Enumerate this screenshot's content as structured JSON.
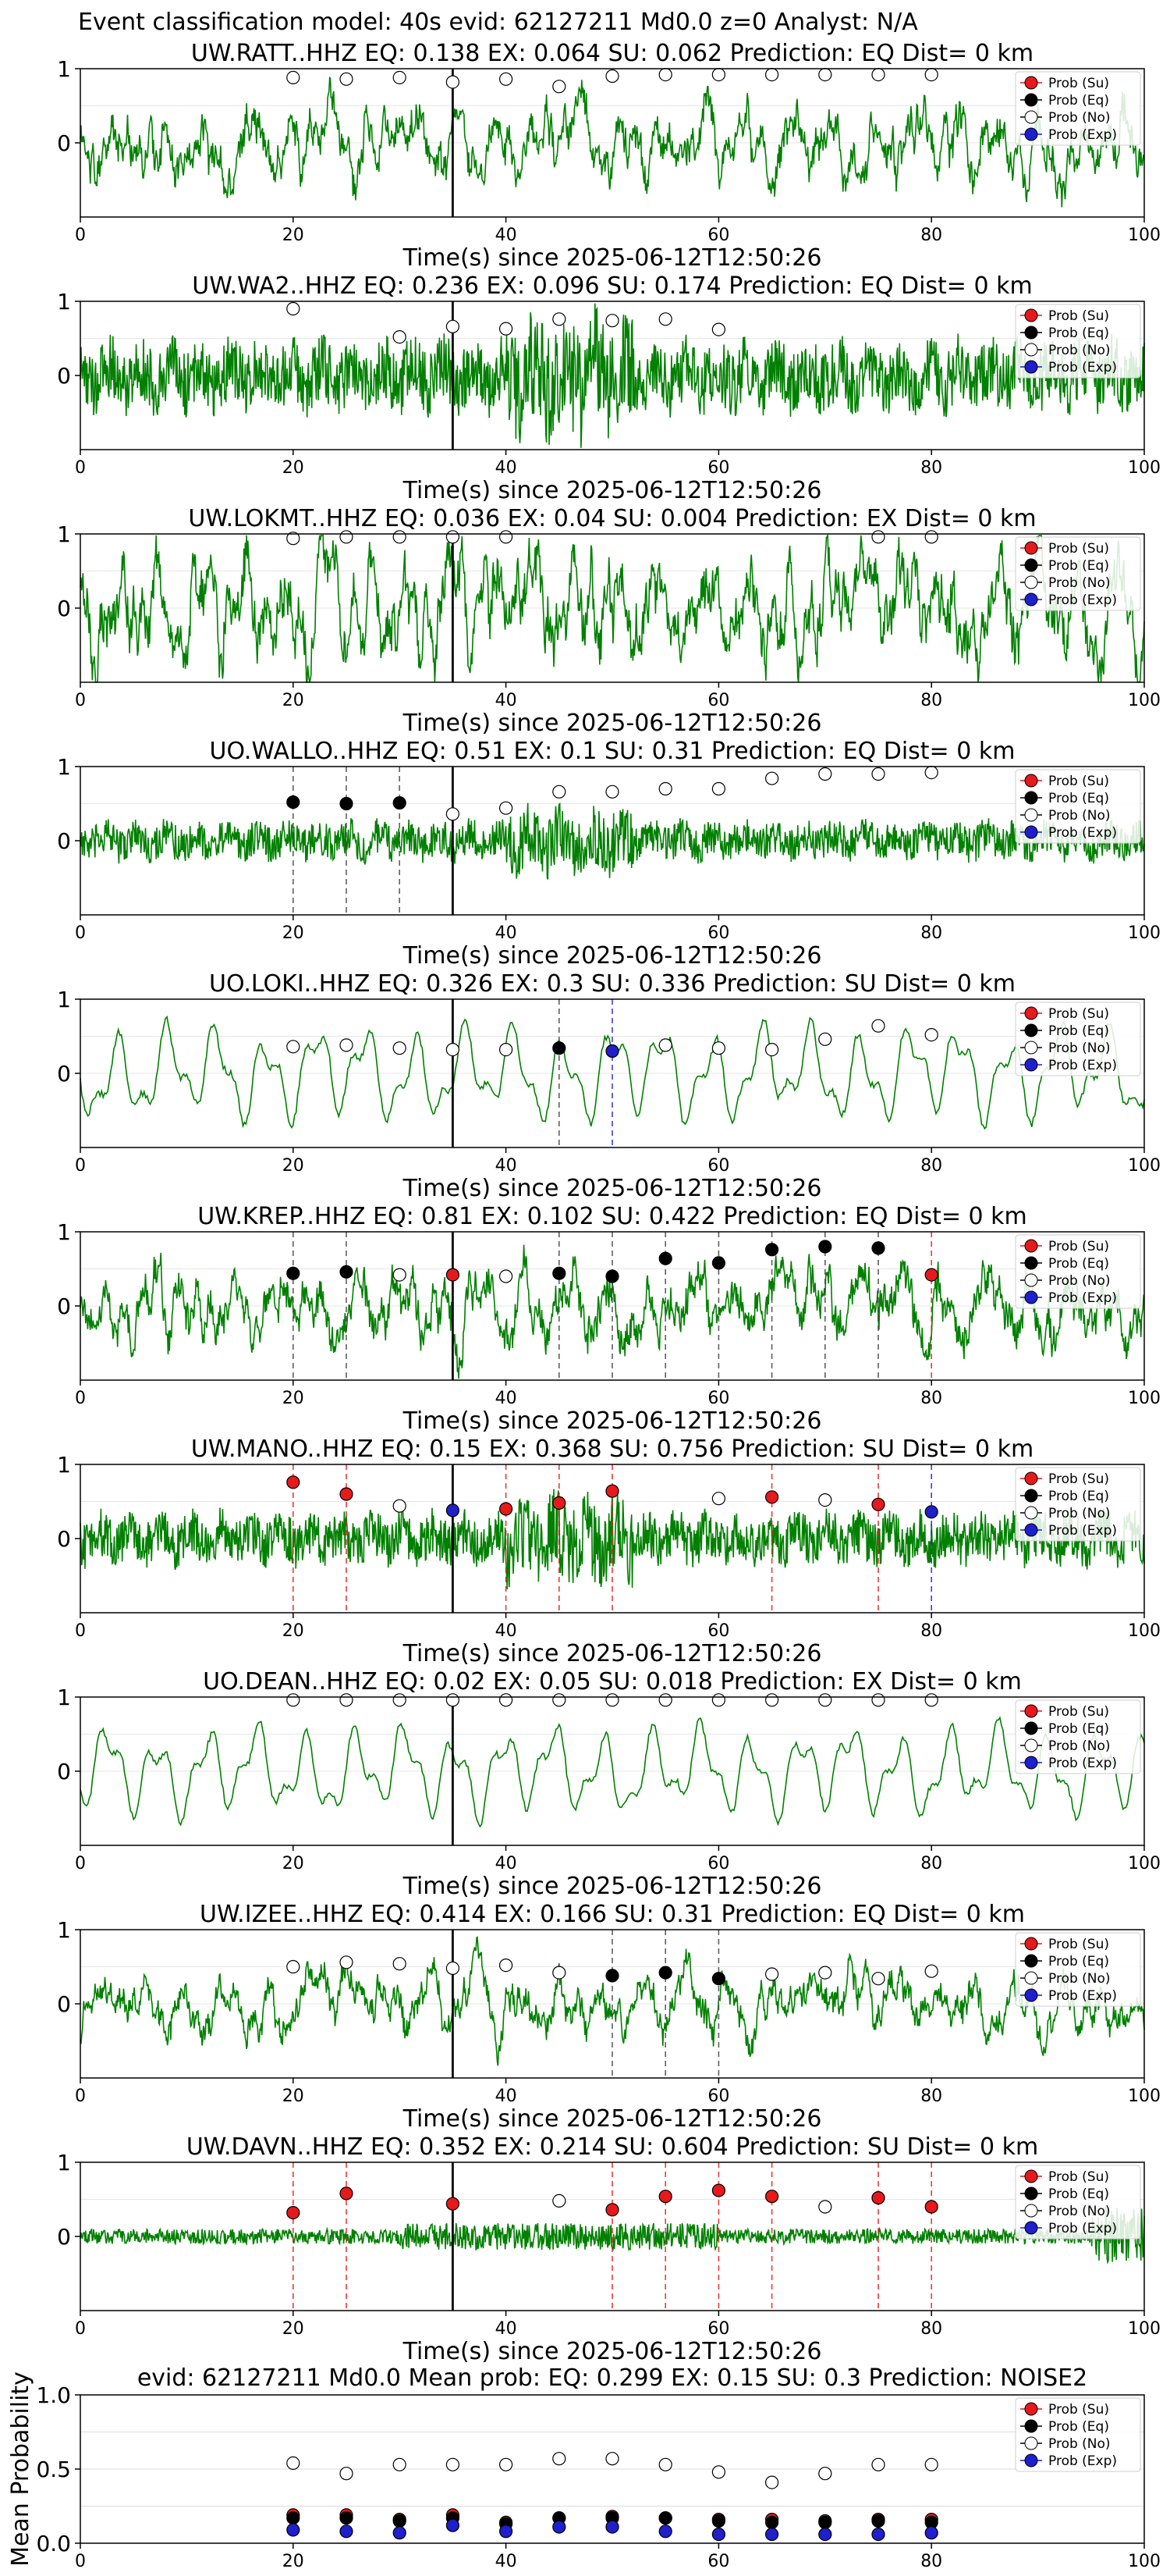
{
  "figure_title": "Event classification model: 40s evid: 62127211 Md0.0 z=0 Analyst: N/A",
  "legend_labels": [
    "Prob (Su)",
    "Prob (Eq)",
    "Prob (No)",
    "Prob (Exp)"
  ],
  "colors": {
    "su": "#e41a1c",
    "eq": "#000000",
    "no": "#ffffff",
    "exp": "#1f1fcc",
    "trace": "#008000",
    "pick_line": "#000000"
  },
  "chart_data": [
    {
      "type": "line",
      "station": "UW.RATT..HHZ",
      "title": "UW.RATT..HHZ   EQ: 0.138  EX: 0.064  SU: 0.062   Prediction: EQ    Dist= 0 km",
      "xlabel": "Time(s) since 2025-06-12T12:50:26",
      "xlim": [
        0,
        100
      ],
      "ylim": [
        -1,
        1
      ],
      "xticks": [
        "0",
        "20",
        "40",
        "60",
        "80",
        "100"
      ],
      "yticks": [
        "0",
        "1"
      ],
      "pick_time": 35,
      "trace_style": "broadband",
      "trace_amplitude": 0.55,
      "markers": [
        {
          "t": 20,
          "p": 0.88,
          "c": "no"
        },
        {
          "t": 25,
          "p": 0.86,
          "c": "no"
        },
        {
          "t": 30,
          "p": 0.88,
          "c": "no"
        },
        {
          "t": 35,
          "p": 0.82,
          "c": "no"
        },
        {
          "t": 40,
          "p": 0.86,
          "c": "no"
        },
        {
          "t": 45,
          "p": 0.76,
          "c": "no"
        },
        {
          "t": 50,
          "p": 0.9,
          "c": "no"
        },
        {
          "t": 55,
          "p": 0.92,
          "c": "no"
        },
        {
          "t": 60,
          "p": 0.92,
          "c": "no"
        },
        {
          "t": 65,
          "p": 0.92,
          "c": "no"
        },
        {
          "t": 70,
          "p": 0.92,
          "c": "no"
        },
        {
          "t": 75,
          "p": 0.92,
          "c": "no"
        },
        {
          "t": 80,
          "p": 0.92,
          "c": "no"
        }
      ]
    },
    {
      "type": "line",
      "station": "UW.WA2..HHZ",
      "title": "UW.WA2..HHZ   EQ: 0.236  EX: 0.096  SU: 0.174   Prediction: EQ    Dist= 0 km",
      "xlabel": "Time(s) since 2025-06-12T12:50:26",
      "xlim": [
        0,
        100
      ],
      "ylim": [
        -1,
        1
      ],
      "xticks": [
        "0",
        "20",
        "40",
        "60",
        "80",
        "100"
      ],
      "yticks": [
        "0",
        "1"
      ],
      "pick_time": 35,
      "trace_style": "noisy",
      "trace_amplitude": 0.55,
      "markers": [
        {
          "t": 20,
          "p": 0.9,
          "c": "no"
        },
        {
          "t": 30,
          "p": 0.52,
          "c": "no"
        },
        {
          "t": 35,
          "p": 0.66,
          "c": "no"
        },
        {
          "t": 40,
          "p": 0.63,
          "c": "no"
        },
        {
          "t": 45,
          "p": 0.76,
          "c": "no"
        },
        {
          "t": 50,
          "p": 0.74,
          "c": "no"
        },
        {
          "t": 55,
          "p": 0.76,
          "c": "no"
        },
        {
          "t": 60,
          "p": 0.62,
          "c": "no"
        }
      ]
    },
    {
      "type": "line",
      "station": "UW.LOKMT..HHZ",
      "title": "UW.LOKMT..HHZ   EQ: 0.036  EX: 0.04  SU: 0.004   Prediction: EX    Dist= 0 km",
      "xlabel": "Time(s) since 2025-06-12T12:50:26",
      "xlim": [
        0,
        100
      ],
      "ylim": [
        -1,
        1
      ],
      "xticks": [
        "0",
        "20",
        "40",
        "60",
        "80",
        "100"
      ],
      "yticks": [
        "0",
        "1"
      ],
      "pick_time": 35,
      "trace_style": "broadband",
      "trace_amplitude": 0.8,
      "markers": [
        {
          "t": 20,
          "p": 0.94,
          "c": "no"
        },
        {
          "t": 25,
          "p": 0.96,
          "c": "no"
        },
        {
          "t": 30,
          "p": 0.96,
          "c": "no"
        },
        {
          "t": 35,
          "p": 0.96,
          "c": "no"
        },
        {
          "t": 40,
          "p": 0.96,
          "c": "no"
        },
        {
          "t": 75,
          "p": 0.96,
          "c": "no"
        },
        {
          "t": 80,
          "p": 0.96,
          "c": "no"
        }
      ]
    },
    {
      "type": "line",
      "station": "UO.WALLO..HHZ",
      "title": "UO.WALLO..HHZ   EQ: 0.51  EX: 0.1  SU: 0.31   Prediction: EQ    Dist= 0 km",
      "xlabel": "Time(s) since 2025-06-12T12:50:26",
      "xlim": [
        0,
        100
      ],
      "ylim": [
        -1,
        1
      ],
      "xticks": [
        "0",
        "20",
        "40",
        "60",
        "80",
        "100"
      ],
      "yticks": [
        "0",
        "1"
      ],
      "pick_time": 35,
      "trace_style": "noisy",
      "trace_amplitude": 0.3,
      "markers": [
        {
          "t": 20,
          "p": 0.52,
          "c": "eq"
        },
        {
          "t": 25,
          "p": 0.5,
          "c": "eq"
        },
        {
          "t": 30,
          "p": 0.51,
          "c": "eq"
        },
        {
          "t": 35,
          "p": 0.36,
          "c": "no"
        },
        {
          "t": 40,
          "p": 0.44,
          "c": "no"
        },
        {
          "t": 45,
          "p": 0.66,
          "c": "no"
        },
        {
          "t": 50,
          "p": 0.66,
          "c": "no"
        },
        {
          "t": 55,
          "p": 0.7,
          "c": "no"
        },
        {
          "t": 60,
          "p": 0.7,
          "c": "no"
        },
        {
          "t": 65,
          "p": 0.84,
          "c": "no"
        },
        {
          "t": 70,
          "p": 0.9,
          "c": "no"
        },
        {
          "t": 75,
          "p": 0.9,
          "c": "no"
        },
        {
          "t": 80,
          "p": 0.92,
          "c": "no"
        }
      ]
    },
    {
      "type": "line",
      "station": "UO.LOKI..HHZ",
      "title": "UO.LOKI..HHZ   EQ: 0.326  EX: 0.3  SU: 0.336   Prediction: SU    Dist= 0 km",
      "xlabel": "Time(s) since 2025-06-12T12:50:26",
      "xlim": [
        0,
        100
      ],
      "ylim": [
        -1,
        1
      ],
      "xticks": [
        "0",
        "20",
        "40",
        "60",
        "80",
        "100"
      ],
      "yticks": [
        "0",
        "1"
      ],
      "pick_time": 35,
      "trace_style": "smooth",
      "trace_amplitude": 0.75,
      "markers": [
        {
          "t": 20,
          "p": 0.36,
          "c": "no"
        },
        {
          "t": 25,
          "p": 0.38,
          "c": "no"
        },
        {
          "t": 30,
          "p": 0.34,
          "c": "no"
        },
        {
          "t": 35,
          "p": 0.32,
          "c": "no"
        },
        {
          "t": 40,
          "p": 0.32,
          "c": "no"
        },
        {
          "t": 45,
          "p": 0.34,
          "c": "eq"
        },
        {
          "t": 50,
          "p": 0.3,
          "c": "exp"
        },
        {
          "t": 55,
          "p": 0.38,
          "c": "no"
        },
        {
          "t": 60,
          "p": 0.34,
          "c": "no"
        },
        {
          "t": 65,
          "p": 0.32,
          "c": "no"
        },
        {
          "t": 70,
          "p": 0.46,
          "c": "no"
        },
        {
          "t": 75,
          "p": 0.64,
          "c": "no"
        },
        {
          "t": 80,
          "p": 0.52,
          "c": "no"
        }
      ]
    },
    {
      "type": "line",
      "station": "UW.KREP..HHZ",
      "title": "UW.KREP..HHZ   EQ: 0.81  EX: 0.102  SU: 0.422   Prediction: EQ    Dist= 0 km",
      "xlabel": "Time(s) since 2025-06-12T12:50:26",
      "xlim": [
        0,
        100
      ],
      "ylim": [
        -1,
        1
      ],
      "xticks": [
        "0",
        "20",
        "40",
        "60",
        "80",
        "100"
      ],
      "yticks": [
        "0",
        "1"
      ],
      "pick_time": 35,
      "trace_style": "broadband",
      "trace_amplitude": 0.55,
      "markers": [
        {
          "t": 20,
          "p": 0.44,
          "c": "eq"
        },
        {
          "t": 25,
          "p": 0.46,
          "c": "eq"
        },
        {
          "t": 30,
          "p": 0.42,
          "c": "no"
        },
        {
          "t": 35,
          "p": 0.42,
          "c": "su"
        },
        {
          "t": 40,
          "p": 0.4,
          "c": "no"
        },
        {
          "t": 45,
          "p": 0.44,
          "c": "eq"
        },
        {
          "t": 50,
          "p": 0.4,
          "c": "eq"
        },
        {
          "t": 55,
          "p": 0.64,
          "c": "eq"
        },
        {
          "t": 60,
          "p": 0.58,
          "c": "eq"
        },
        {
          "t": 65,
          "p": 0.76,
          "c": "eq"
        },
        {
          "t": 70,
          "p": 0.8,
          "c": "eq"
        },
        {
          "t": 75,
          "p": 0.78,
          "c": "eq"
        },
        {
          "t": 80,
          "p": 0.42,
          "c": "su"
        }
      ]
    },
    {
      "type": "line",
      "station": "UW.MANO..HHZ",
      "title": "UW.MANO..HHZ   EQ: 0.15  EX: 0.368  SU: 0.756   Prediction: SU    Dist= 0 km",
      "xlabel": "Time(s) since 2025-06-12T12:50:26",
      "xlim": [
        0,
        100
      ],
      "ylim": [
        -1,
        1
      ],
      "xticks": [
        "0",
        "20",
        "40",
        "60",
        "80",
        "100"
      ],
      "yticks": [
        "0",
        "1"
      ],
      "pick_time": 35,
      "trace_style": "noisy",
      "trace_amplitude": 0.4,
      "markers": [
        {
          "t": 20,
          "p": 0.76,
          "c": "su"
        },
        {
          "t": 25,
          "p": 0.6,
          "c": "su"
        },
        {
          "t": 30,
          "p": 0.44,
          "c": "no"
        },
        {
          "t": 35,
          "p": 0.38,
          "c": "exp"
        },
        {
          "t": 40,
          "p": 0.4,
          "c": "su"
        },
        {
          "t": 45,
          "p": 0.48,
          "c": "su"
        },
        {
          "t": 50,
          "p": 0.64,
          "c": "su"
        },
        {
          "t": 60,
          "p": 0.54,
          "c": "no"
        },
        {
          "t": 65,
          "p": 0.56,
          "c": "su"
        },
        {
          "t": 70,
          "p": 0.52,
          "c": "no"
        },
        {
          "t": 75,
          "p": 0.46,
          "c": "su"
        },
        {
          "t": 80,
          "p": 0.36,
          "c": "exp"
        }
      ]
    },
    {
      "type": "line",
      "station": "UO.DEAN..HHZ",
      "title": "UO.DEAN..HHZ   EQ: 0.02  EX: 0.05  SU: 0.018   Prediction: EX    Dist= 0 km",
      "xlabel": "Time(s) since 2025-06-12T12:50:26",
      "xlim": [
        0,
        100
      ],
      "ylim": [
        -1,
        1
      ],
      "xticks": [
        "0",
        "20",
        "40",
        "60",
        "80",
        "100"
      ],
      "yticks": [
        "0",
        "1"
      ],
      "pick_time": 35,
      "trace_style": "smooth",
      "trace_amplitude": 0.7,
      "markers": [
        {
          "t": 20,
          "p": 0.96,
          "c": "no"
        },
        {
          "t": 25,
          "p": 0.96,
          "c": "no"
        },
        {
          "t": 30,
          "p": 0.96,
          "c": "no"
        },
        {
          "t": 35,
          "p": 0.96,
          "c": "no"
        },
        {
          "t": 40,
          "p": 0.96,
          "c": "no"
        },
        {
          "t": 45,
          "p": 0.96,
          "c": "no"
        },
        {
          "t": 50,
          "p": 0.96,
          "c": "no"
        },
        {
          "t": 55,
          "p": 0.96,
          "c": "no"
        },
        {
          "t": 60,
          "p": 0.96,
          "c": "no"
        },
        {
          "t": 65,
          "p": 0.96,
          "c": "no"
        },
        {
          "t": 70,
          "p": 0.96,
          "c": "no"
        },
        {
          "t": 75,
          "p": 0.96,
          "c": "no"
        },
        {
          "t": 80,
          "p": 0.96,
          "c": "no"
        }
      ]
    },
    {
      "type": "line",
      "station": "UW.IZEE..HHZ",
      "title": "UW.IZEE..HHZ   EQ: 0.414  EX: 0.166  SU: 0.31   Prediction: EQ    Dist= 0 km",
      "xlabel": "Time(s) since 2025-06-12T12:50:26",
      "xlim": [
        0,
        100
      ],
      "ylim": [
        -1,
        1
      ],
      "xticks": [
        "0",
        "20",
        "40",
        "60",
        "80",
        "100"
      ],
      "yticks": [
        "0",
        "1"
      ],
      "pick_time": 35,
      "trace_style": "broadband",
      "trace_amplitude": 0.45,
      "markers": [
        {
          "t": 20,
          "p": 0.5,
          "c": "no"
        },
        {
          "t": 25,
          "p": 0.56,
          "c": "no"
        },
        {
          "t": 30,
          "p": 0.54,
          "c": "no"
        },
        {
          "t": 35,
          "p": 0.48,
          "c": "no"
        },
        {
          "t": 40,
          "p": 0.52,
          "c": "no"
        },
        {
          "t": 45,
          "p": 0.42,
          "c": "no"
        },
        {
          "t": 50,
          "p": 0.38,
          "c": "eq"
        },
        {
          "t": 55,
          "p": 0.42,
          "c": "eq"
        },
        {
          "t": 60,
          "p": 0.34,
          "c": "eq"
        },
        {
          "t": 65,
          "p": 0.4,
          "c": "no"
        },
        {
          "t": 70,
          "p": 0.42,
          "c": "no"
        },
        {
          "t": 75,
          "p": 0.34,
          "c": "no"
        },
        {
          "t": 80,
          "p": 0.44,
          "c": "no"
        }
      ]
    },
    {
      "type": "line",
      "station": "UW.DAVN..HHZ",
      "title": "UW.DAVN..HHZ   EQ: 0.352  EX: 0.214  SU: 0.604   Prediction: SU    Dist= 0 km",
      "xlabel": "Time(s) since 2025-06-12T12:50:26",
      "xlim": [
        0,
        100
      ],
      "ylim": [
        -1,
        1
      ],
      "xticks": [
        "0",
        "20",
        "40",
        "60",
        "80",
        "100"
      ],
      "yticks": [
        "0",
        "1"
      ],
      "pick_time": 35,
      "trace_style": "quiet",
      "trace_amplitude": 0.2,
      "markers": [
        {
          "t": 20,
          "p": 0.32,
          "c": "su"
        },
        {
          "t": 25,
          "p": 0.58,
          "c": "su"
        },
        {
          "t": 35,
          "p": 0.44,
          "c": "su"
        },
        {
          "t": 45,
          "p": 0.48,
          "c": "no"
        },
        {
          "t": 50,
          "p": 0.36,
          "c": "su"
        },
        {
          "t": 55,
          "p": 0.54,
          "c": "su"
        },
        {
          "t": 60,
          "p": 0.62,
          "c": "su"
        },
        {
          "t": 65,
          "p": 0.54,
          "c": "su"
        },
        {
          "t": 70,
          "p": 0.4,
          "c": "no"
        },
        {
          "t": 75,
          "p": 0.52,
          "c": "su"
        },
        {
          "t": 80,
          "p": 0.4,
          "c": "su"
        }
      ]
    },
    {
      "type": "scatter",
      "title": "evid: 62127211  Md0.0   Mean prob:   EQ: 0.299  EX: 0.15  SU: 0.3   Prediction: NOISE2",
      "ylabel": "Mean Probability",
      "xlim": [
        0,
        100
      ],
      "ylim": [
        0,
        1
      ],
      "xticks": [
        "0",
        "20",
        "40",
        "60",
        "80",
        "100"
      ],
      "yticks": [
        "0.0",
        "0.5",
        "1.0"
      ],
      "grid": true,
      "x": [
        20,
        25,
        30,
        35,
        40,
        45,
        50,
        55,
        60,
        65,
        70,
        75,
        80
      ],
      "series": [
        {
          "name": "Prob (No)",
          "key": "no",
          "values": [
            0.54,
            0.47,
            0.53,
            0.53,
            0.53,
            0.57,
            0.57,
            0.53,
            0.48,
            0.41,
            0.47,
            0.53,
            0.53
          ]
        },
        {
          "name": "Prob (Su)",
          "key": "su",
          "values": [
            0.19,
            0.19,
            0.16,
            0.19,
            0.14,
            0.17,
            0.18,
            0.17,
            0.16,
            0.16,
            0.15,
            0.16,
            0.16
          ]
        },
        {
          "name": "Prob (Eq)",
          "key": "eq",
          "values": [
            0.17,
            0.17,
            0.15,
            0.17,
            0.13,
            0.17,
            0.17,
            0.17,
            0.15,
            0.14,
            0.14,
            0.15,
            0.14
          ]
        },
        {
          "name": "Prob (Exp)",
          "key": "exp",
          "values": [
            0.09,
            0.08,
            0.07,
            0.12,
            0.08,
            0.11,
            0.11,
            0.08,
            0.06,
            0.06,
            0.06,
            0.06,
            0.07
          ]
        }
      ]
    }
  ]
}
